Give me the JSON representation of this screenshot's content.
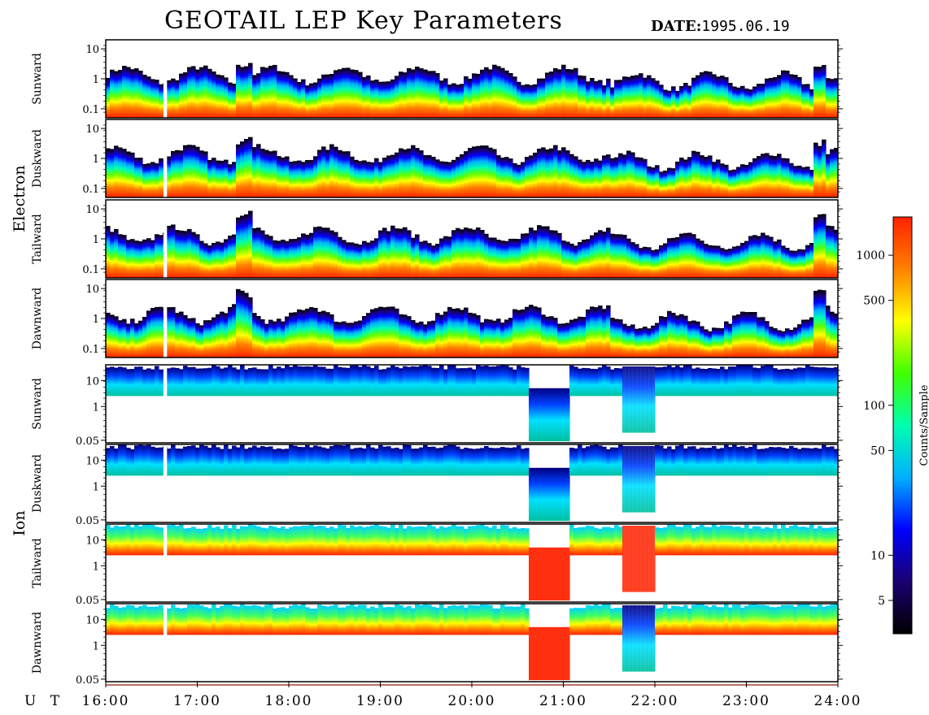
{
  "header": {
    "title": "GEOTAIL LEP Key Parameters",
    "date_label": "DATE:",
    "date_value": "1995.06.19"
  },
  "chart_data": {
    "type": "heatmap",
    "title": "GEOTAIL LEP Key Parameters",
    "time_axis": {
      "label": "U T",
      "ticks": [
        "16:00",
        "17:00",
        "18:00",
        "19:00",
        "20:00",
        "21:00",
        "22:00",
        "23:00",
        "24:00"
      ],
      "range_hours": [
        16,
        24
      ]
    },
    "groups": [
      {
        "name": "Electron",
        "panels": [
          {
            "name": "Sunward",
            "y_ticks": [
              "10",
              "1",
              "0.1"
            ],
            "ylim": [
              0.05,
              20
            ],
            "yscale": "log"
          },
          {
            "name": "Duskward",
            "y_ticks": [
              "10",
              "1",
              "0.1"
            ],
            "ylim": [
              0.05,
              20
            ],
            "yscale": "log"
          },
          {
            "name": "Tailward",
            "y_ticks": [
              "10",
              "1",
              "0.1"
            ],
            "ylim": [
              0.05,
              20
            ],
            "yscale": "log"
          },
          {
            "name": "Dawnward",
            "y_ticks": [
              "10",
              "1",
              "0.1"
            ],
            "ylim": [
              0.05,
              20
            ],
            "yscale": "log"
          }
        ]
      },
      {
        "name": "Ion",
        "panels": [
          {
            "name": "Sunward",
            "y_ticks": [
              "10",
              "1",
              "0.05"
            ],
            "ylim": [
              0.04,
              40
            ],
            "yscale": "log"
          },
          {
            "name": "Duskward",
            "y_ticks": [
              "10",
              "1",
              "0.05"
            ],
            "ylim": [
              0.04,
              40
            ],
            "yscale": "log"
          },
          {
            "name": "Tailward",
            "y_ticks": [
              "10",
              "1",
              "0.05"
            ],
            "ylim": [
              0.04,
              40
            ],
            "yscale": "log"
          },
          {
            "name": "Dawnward",
            "y_ticks": [
              "10",
              "1",
              "0.05"
            ],
            "ylim": [
              0.04,
              40
            ],
            "yscale": "log"
          }
        ]
      }
    ],
    "colorbar": {
      "label": "Counts/Sample",
      "scale": "log",
      "range": [
        3,
        1800
      ],
      "ticks": [
        "1000",
        "500",
        "100",
        "50",
        "10",
        "5"
      ],
      "tick_values": [
        1000,
        500,
        100,
        50,
        10,
        5
      ],
      "colors": [
        "#000000",
        "#1a0070",
        "#0000ff",
        "#00b0ff",
        "#00ffb0",
        "#40ff00",
        "#ffff00",
        "#ff8000",
        "#ff2000"
      ]
    },
    "data_gaps_hours": [
      [
        16.63,
        16.66
      ]
    ]
  }
}
